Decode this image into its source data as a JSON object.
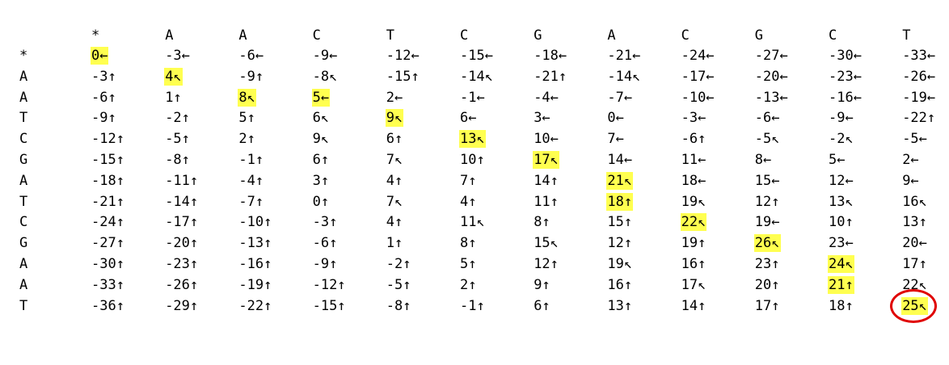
{
  "highlight_color": "#ffff50",
  "circle_color": "#e00000",
  "col_headers": [
    "*",
    "A",
    "A",
    "C",
    "T",
    "C",
    "G",
    "A",
    "C",
    "G",
    "C",
    "T"
  ],
  "row_headers": [
    "*",
    "A",
    "A",
    "T",
    "C",
    "G",
    "A",
    "T",
    "C",
    "G",
    "A",
    "A",
    "T"
  ],
  "rows": [
    [
      "0←",
      "-3←",
      "-6←",
      "-9←",
      "-12←",
      "-15←",
      "-18←",
      "-21←",
      "-24←",
      "-27←",
      "-30←",
      "-33←"
    ],
    [
      "-3↑",
      "4↖",
      "-9↑",
      "-8↖",
      "-15↑",
      "-14↖",
      "-21↑",
      "-14↖",
      "-17←",
      "-20←",
      "-23←",
      "-26←"
    ],
    [
      "-6↑",
      "1↑",
      "8↖",
      "5←",
      "2←",
      "-1←",
      "-4←",
      "-7←",
      "-10←",
      "-13←",
      "-16←",
      "-19←"
    ],
    [
      "-9↑",
      "-2↑",
      "5↑",
      "6↖",
      "9↖",
      "6←",
      "3←",
      "0←",
      "-3←",
      "-6←",
      "-9←",
      "-22↑"
    ],
    [
      "-12↑",
      "-5↑",
      "2↑",
      "9↖",
      "6↑",
      "13↖",
      "10←",
      "7←",
      "-6↑",
      "-5↖",
      "-2↖",
      "-5←"
    ],
    [
      "-15↑",
      "-8↑",
      "-1↑",
      "6↑",
      "7↖",
      "10↑",
      "17↖",
      "14←",
      "11←",
      "8←",
      "5←",
      "2←"
    ],
    [
      "-18↑",
      "-11↑",
      "-4↑",
      "3↑",
      "4↑",
      "7↑",
      "14↑",
      "21↖",
      "18←",
      "15←",
      "12←",
      "9←"
    ],
    [
      "-21↑",
      "-14↑",
      "-7↑",
      "0↑",
      "7↖",
      "4↑",
      "11↑",
      "18↑",
      "19↖",
      "12↑",
      "13↖",
      "16↖"
    ],
    [
      "-24↑",
      "-17↑",
      "-10↑",
      "-3↑",
      "4↑",
      "11↖",
      "8↑",
      "15↑",
      "22↖",
      "19←",
      "10↑",
      "13↑"
    ],
    [
      "-27↑",
      "-20↑",
      "-13↑",
      "-6↑",
      "1↑",
      "8↑",
      "15↖",
      "12↑",
      "19↑",
      "26↖",
      "23←",
      "20←"
    ],
    [
      "-30↑",
      "-23↑",
      "-16↑",
      "-9↑",
      "-2↑",
      "5↑",
      "12↑",
      "19↖",
      "16↑",
      "23↑",
      "24↖",
      "17↑"
    ],
    [
      "-33↑",
      "-26↑",
      "-19↑",
      "-12↑",
      "-5↑",
      "2↑",
      "9↑",
      "16↑",
      "17↖",
      "20↑",
      "21↑",
      "22↖"
    ],
    [
      "-36↑",
      "-29↑",
      "-22↑",
      "-15↑",
      "-8↑",
      "-1↑",
      "6↑",
      "13↑",
      "14↑",
      "17↑",
      "18↑",
      "25↖"
    ]
  ],
  "highlighted_cells": [
    [
      0,
      0
    ],
    [
      1,
      1
    ],
    [
      2,
      2
    ],
    [
      2,
      3
    ],
    [
      3,
      4
    ],
    [
      4,
      5
    ],
    [
      5,
      6
    ],
    [
      6,
      7
    ],
    [
      7,
      7
    ],
    [
      8,
      8
    ],
    [
      9,
      9
    ],
    [
      10,
      10
    ],
    [
      11,
      10
    ],
    [
      12,
      11
    ]
  ],
  "circled_cell": [
    12,
    11
  ]
}
